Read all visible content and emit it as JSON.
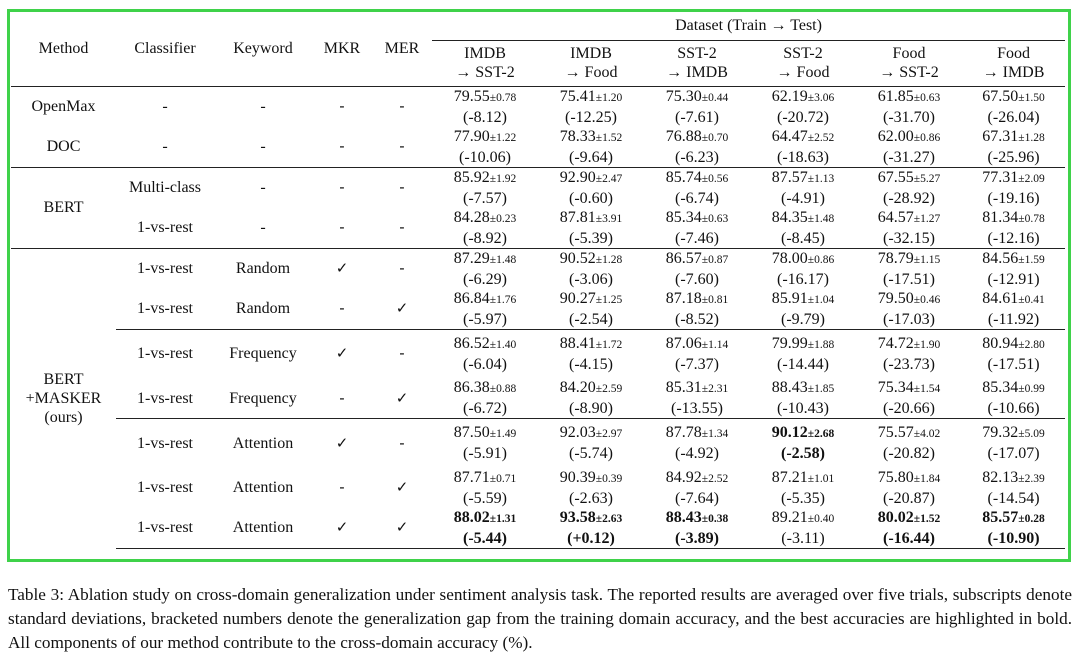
{
  "header": {
    "method": "Method",
    "classifier": "Classifier",
    "keyword": "Keyword",
    "mkr": "MKR",
    "mer": "MER",
    "dataset": "Dataset (Train → Test)",
    "columns": [
      {
        "top": "IMDB",
        "bottom": "→ SST-2"
      },
      {
        "top": "IMDB",
        "bottom": "→ Food"
      },
      {
        "top": "SST-2",
        "bottom": "→ IMDB"
      },
      {
        "top": "SST-2",
        "bottom": "→ Food"
      },
      {
        "top": "Food",
        "bottom": "→ SST-2"
      },
      {
        "top": "Food",
        "bottom": "→ IMDB"
      }
    ]
  },
  "groups": [
    {
      "method_lines": [
        "OpenMax",
        "DOC"
      ],
      "rows": [
        {
          "method": "OpenMax",
          "classifier": "-",
          "keyword": "-",
          "mkr": "-",
          "mer": "-",
          "cells": [
            {
              "mean": "79.55",
              "sd": "±0.78",
              "gap": "(-8.12)"
            },
            {
              "mean": "75.41",
              "sd": "±1.20",
              "gap": "(-12.25)"
            },
            {
              "mean": "75.30",
              "sd": "±0.44",
              "gap": "(-7.61)"
            },
            {
              "mean": "62.19",
              "sd": "±3.06",
              "gap": "(-20.72)"
            },
            {
              "mean": "61.85",
              "sd": "±0.63",
              "gap": "(-31.70)"
            },
            {
              "mean": "67.50",
              "sd": "±1.50",
              "gap": "(-26.04)"
            }
          ]
        },
        {
          "method": "DOC",
          "classifier": "-",
          "keyword": "-",
          "mkr": "-",
          "mer": "-",
          "cells": [
            {
              "mean": "77.90",
              "sd": "±1.22",
              "gap": "(-10.06)"
            },
            {
              "mean": "78.33",
              "sd": "±1.52",
              "gap": "(-9.64)"
            },
            {
              "mean": "76.88",
              "sd": "±0.70",
              "gap": "(-6.23)"
            },
            {
              "mean": "64.47",
              "sd": "±2.52",
              "gap": "(-18.63)"
            },
            {
              "mean": "62.00",
              "sd": "±0.86",
              "gap": "(-31.27)"
            },
            {
              "mean": "67.31",
              "sd": "±1.28",
              "gap": "(-25.96)"
            }
          ]
        }
      ]
    },
    {
      "method": "BERT",
      "rows": [
        {
          "classifier": "Multi-class",
          "keyword": "-",
          "mkr": "-",
          "mer": "-",
          "cells": [
            {
              "mean": "85.92",
              "sd": "±1.92",
              "gap": "(-7.57)"
            },
            {
              "mean": "92.90",
              "sd": "±2.47",
              "gap": "(-0.60)"
            },
            {
              "mean": "85.74",
              "sd": "±0.56",
              "gap": "(-6.74)"
            },
            {
              "mean": "87.57",
              "sd": "±1.13",
              "gap": "(-4.91)"
            },
            {
              "mean": "67.55",
              "sd": "±5.27",
              "gap": "(-28.92)"
            },
            {
              "mean": "77.31",
              "sd": "±2.09",
              "gap": "(-19.16)"
            }
          ]
        },
        {
          "classifier": "1-vs-rest",
          "keyword": "-",
          "mkr": "-",
          "mer": "-",
          "cells": [
            {
              "mean": "84.28",
              "sd": "±0.23",
              "gap": "(-8.92)"
            },
            {
              "mean": "87.81",
              "sd": "±3.91",
              "gap": "(-5.39)"
            },
            {
              "mean": "85.34",
              "sd": "±0.63",
              "gap": "(-7.46)"
            },
            {
              "mean": "84.35",
              "sd": "±1.48",
              "gap": "(-8.45)"
            },
            {
              "mean": "64.57",
              "sd": "±1.27",
              "gap": "(-32.15)"
            },
            {
              "mean": "81.34",
              "sd": "±0.78",
              "gap": "(-12.16)"
            }
          ]
        }
      ]
    },
    {
      "method_lines": [
        "BERT",
        "+MASKER",
        "(ours)"
      ],
      "rows": [
        {
          "classifier": "1-vs-rest",
          "keyword": "Random",
          "mkr": "✓",
          "mer": "-",
          "cells": [
            {
              "mean": "87.29",
              "sd": "±1.48",
              "gap": "(-6.29)"
            },
            {
              "mean": "90.52",
              "sd": "±1.28",
              "gap": "(-3.06)"
            },
            {
              "mean": "86.57",
              "sd": "±0.87",
              "gap": "(-7.60)"
            },
            {
              "mean": "78.00",
              "sd": "±0.86",
              "gap": "(-16.17)"
            },
            {
              "mean": "78.79",
              "sd": "±1.15",
              "gap": "(-17.51)"
            },
            {
              "mean": "84.56",
              "sd": "±1.59",
              "gap": "(-12.91)"
            }
          ]
        },
        {
          "classifier": "1-vs-rest",
          "keyword": "Random",
          "mkr": "-",
          "mer": "✓",
          "cells": [
            {
              "mean": "86.84",
              "sd": "±1.76",
              "gap": "(-5.97)"
            },
            {
              "mean": "90.27",
              "sd": "±1.25",
              "gap": "(-2.54)"
            },
            {
              "mean": "87.18",
              "sd": "±0.81",
              "gap": "(-8.52)"
            },
            {
              "mean": "85.91",
              "sd": "±1.04",
              "gap": "(-9.79)"
            },
            {
              "mean": "79.50",
              "sd": "±0.46",
              "gap": "(-17.03)"
            },
            {
              "mean": "84.61",
              "sd": "±0.41",
              "gap": "(-11.92)"
            }
          ]
        },
        {
          "classifier": "1-vs-rest",
          "keyword": "Frequency",
          "mkr": "✓",
          "mer": "-",
          "cells": [
            {
              "mean": "86.52",
              "sd": "±1.40",
              "gap": "(-6.04)"
            },
            {
              "mean": "88.41",
              "sd": "±1.72",
              "gap": "(-4.15)"
            },
            {
              "mean": "87.06",
              "sd": "±1.14",
              "gap": "(-7.37)"
            },
            {
              "mean": "79.99",
              "sd": "±1.88",
              "gap": "(-14.44)"
            },
            {
              "mean": "74.72",
              "sd": "±1.90",
              "gap": "(-23.73)"
            },
            {
              "mean": "80.94",
              "sd": "±2.80",
              "gap": "(-17.51)"
            }
          ]
        },
        {
          "classifier": "1-vs-rest",
          "keyword": "Frequency",
          "mkr": "-",
          "mer": "✓",
          "cells": [
            {
              "mean": "86.38",
              "sd": "±0.88",
              "gap": "(-6.72)"
            },
            {
              "mean": "84.20",
              "sd": "±2.59",
              "gap": "(-8.90)"
            },
            {
              "mean": "85.31",
              "sd": "±2.31",
              "gap": "(-13.55)"
            },
            {
              "mean": "88.43",
              "sd": "±1.85",
              "gap": "(-10.43)"
            },
            {
              "mean": "75.34",
              "sd": "±1.54",
              "gap": "(-20.66)"
            },
            {
              "mean": "85.34",
              "sd": "±0.99",
              "gap": "(-10.66)"
            }
          ]
        },
        {
          "classifier": "1-vs-rest",
          "keyword": "Attention",
          "mkr": "✓",
          "mer": "-",
          "cells": [
            {
              "mean": "87.50",
              "sd": "±1.49",
              "gap": "(-5.91)"
            },
            {
              "mean": "92.03",
              "sd": "±2.97",
              "gap": "(-5.74)"
            },
            {
              "mean": "87.78",
              "sd": "±1.34",
              "gap": "(-4.92)"
            },
            {
              "mean": "90.12",
              "sd": "±2.68",
              "gap": "(-2.58)",
              "bold": true
            },
            {
              "mean": "75.57",
              "sd": "±4.02",
              "gap": "(-20.82)"
            },
            {
              "mean": "79.32",
              "sd": "±5.09",
              "gap": "(-17.07)"
            }
          ]
        },
        {
          "classifier": "1-vs-rest",
          "keyword": "Attention",
          "mkr": "-",
          "mer": "✓",
          "cells": [
            {
              "mean": "87.71",
              "sd": "±0.71",
              "gap": "(-5.59)"
            },
            {
              "mean": "90.39",
              "sd": "±0.39",
              "gap": "(-2.63)"
            },
            {
              "mean": "84.92",
              "sd": "±2.52",
              "gap": "(-7.64)"
            },
            {
              "mean": "87.21",
              "sd": "±1.01",
              "gap": "(-5.35)"
            },
            {
              "mean": "75.80",
              "sd": "±1.84",
              "gap": "(-20.87)"
            },
            {
              "mean": "82.13",
              "sd": "±2.39",
              "gap": "(-14.54)"
            }
          ]
        },
        {
          "classifier": "1-vs-rest",
          "keyword": "Attention",
          "mkr": "✓",
          "mer": "✓",
          "cells": [
            {
              "mean": "88.02",
              "sd": "±1.31",
              "gap": "(-5.44)",
              "bold": true
            },
            {
              "mean": "93.58",
              "sd": "±2.63",
              "gap": "(+0.12)",
              "bold": true
            },
            {
              "mean": "88.43",
              "sd": "±0.38",
              "gap": "(-3.89)",
              "bold": true
            },
            {
              "mean": "89.21",
              "sd": "±0.40",
              "gap": "(-3.11)"
            },
            {
              "mean": "80.02",
              "sd": "±1.52",
              "gap": "(-16.44)",
              "bold": true
            },
            {
              "mean": "85.57",
              "sd": "±0.28",
              "gap": "(-10.90)",
              "bold": true
            }
          ]
        }
      ]
    }
  ],
  "caption": "Table 3: Ablation study on cross-domain generalization under sentiment analysis task. The reported results are averaged over five trials, subscripts denote standard deviations, bracketed numbers denote the generalization gap from the training domain accuracy, and the best accuracies are highlighted in bold. All components of our method contribute to the cross-domain accuracy (%).",
  "colors": {
    "frame": "#3fd24a",
    "text": "#111111"
  }
}
